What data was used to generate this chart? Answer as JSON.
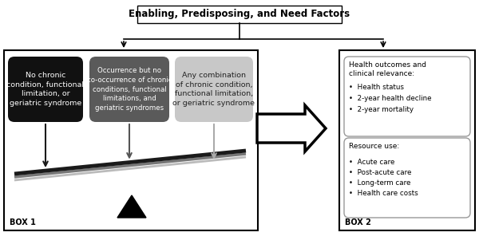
{
  "title_box": "Enabling, Predisposing, and Need Factors",
  "box1_label": "BOX 1",
  "box2_label": "BOX 2",
  "box_black_text": "No chronic\ncondition, functional\nlimitation, or\ngeriatric syndrome",
  "box_dark_text": "Occurrence but no\nco-occurrence of chronic\nconditions, functional\nlimitations, and\ngeriatric syndromes",
  "box_light_text": "Any combination\nof chronic condition,\nfunctional limitation,\nor geriatric syndrome",
  "box2_section1_title": "Health outcomes and\nclinical relevance:",
  "box2_section1_bullets": [
    "Health status",
    "2-year health decline",
    "2-year mortality"
  ],
  "box2_section2_title": "Resource use:",
  "box2_section2_bullets": [
    "Acute care",
    "Post-acute care",
    "Long-term care",
    "Health care costs"
  ],
  "bg_color": "#ffffff",
  "black_box_color": "#111111",
  "dark_box_color": "#5a5a5a",
  "light_box_color": "#c8c8c8",
  "title_fontsize": 8.5,
  "body_fontsize": 7,
  "small_fontsize": 6.5,
  "bullet_char": "•"
}
